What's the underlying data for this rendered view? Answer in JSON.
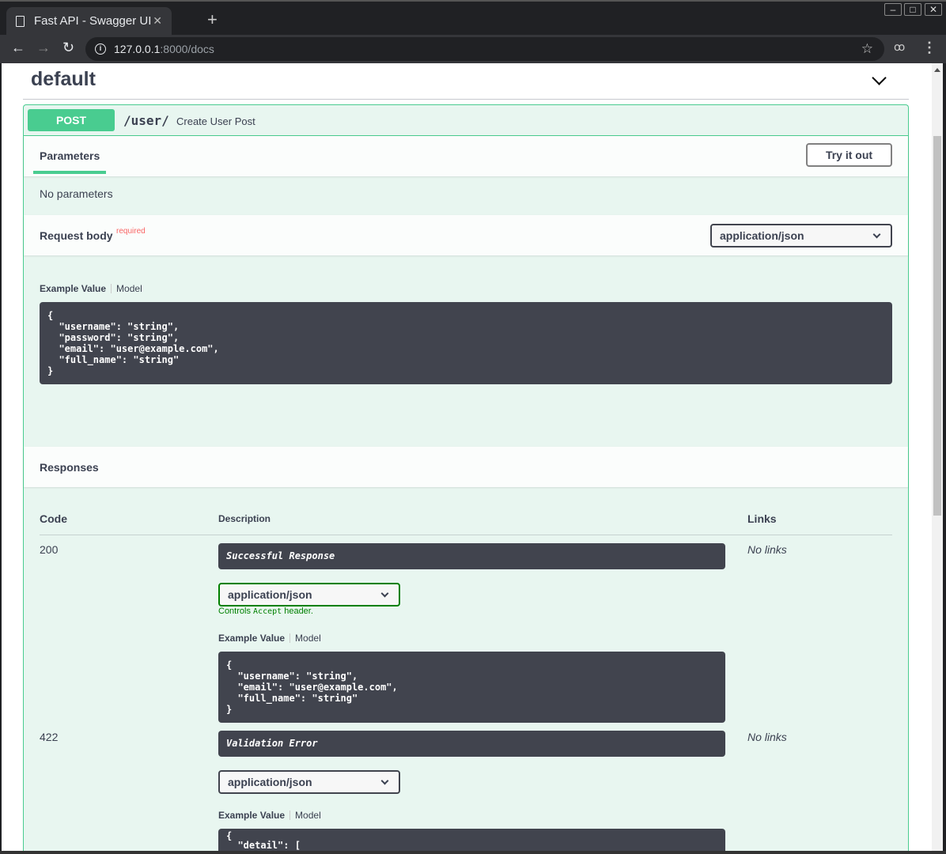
{
  "browser": {
    "tab_title": "Fast API - Swagger UI",
    "url_host": "127.0.0.1",
    "url_rest": ":8000/docs"
  },
  "tag": {
    "name": "default"
  },
  "operation": {
    "method": "POST",
    "path": "/user/",
    "summary": "Create User Post",
    "parameters_tab": "Parameters",
    "try_button": "Try it out",
    "no_parameters": "No parameters",
    "request_body": {
      "label": "Request body",
      "required": "required",
      "content_type": "application/json",
      "example_tab": "Example Value",
      "model_tab": "Model",
      "example": "{\n  \"username\": \"string\",\n  \"password\": \"string\",\n  \"email\": \"user@example.com\",\n  \"full_name\": \"string\"\n}"
    },
    "responses": {
      "title": "Responses",
      "col_code": "Code",
      "col_desc": "Description",
      "col_links": "Links",
      "items": [
        {
          "code": "200",
          "description": "Successful Response",
          "content_type": "application/json",
          "controls_pre": "Controls ",
          "controls_code": "Accept",
          "controls_post": " header.",
          "example_tab": "Example Value",
          "model_tab": "Model",
          "links": "No links",
          "example": "{\n  \"username\": \"string\",\n  \"email\": \"user@example.com\",\n  \"full_name\": \"string\"\n}"
        },
        {
          "code": "422",
          "description": "Validation Error",
          "content_type": "application/json",
          "example_tab": "Example Value",
          "model_tab": "Model",
          "links": "No links",
          "example": "{\n  \"detail\": ["
        }
      ]
    }
  }
}
